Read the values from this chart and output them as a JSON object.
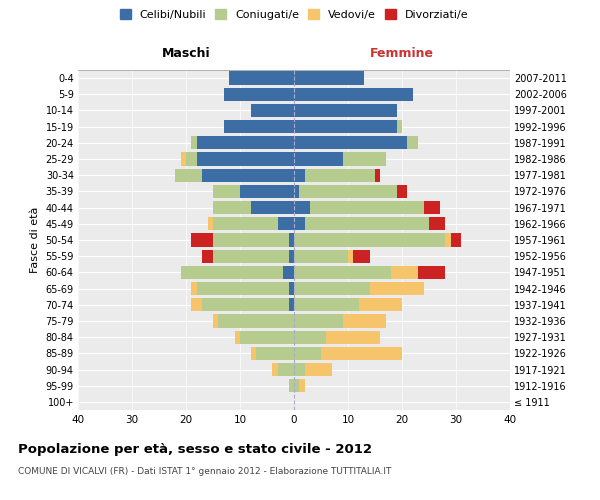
{
  "age_groups": [
    "100+",
    "95-99",
    "90-94",
    "85-89",
    "80-84",
    "75-79",
    "70-74",
    "65-69",
    "60-64",
    "55-59",
    "50-54",
    "45-49",
    "40-44",
    "35-39",
    "30-34",
    "25-29",
    "20-24",
    "15-19",
    "10-14",
    "5-9",
    "0-4"
  ],
  "birth_years": [
    "≤ 1911",
    "1912-1916",
    "1917-1921",
    "1922-1926",
    "1927-1931",
    "1932-1936",
    "1937-1941",
    "1942-1946",
    "1947-1951",
    "1952-1956",
    "1957-1961",
    "1962-1966",
    "1967-1971",
    "1972-1976",
    "1977-1981",
    "1982-1986",
    "1987-1991",
    "1992-1996",
    "1997-2001",
    "2002-2006",
    "2007-2011"
  ],
  "male": {
    "celibi": [
      0,
      0,
      0,
      0,
      0,
      0,
      1,
      1,
      2,
      1,
      1,
      3,
      8,
      10,
      17,
      18,
      18,
      13,
      8,
      13,
      12
    ],
    "coniugati": [
      0,
      1,
      3,
      7,
      10,
      14,
      16,
      17,
      19,
      14,
      14,
      12,
      7,
      5,
      5,
      2,
      1,
      0,
      0,
      0,
      0
    ],
    "vedovi": [
      0,
      0,
      1,
      1,
      1,
      1,
      2,
      1,
      0,
      0,
      0,
      1,
      0,
      0,
      0,
      1,
      0,
      0,
      0,
      0,
      0
    ],
    "divorziati": [
      0,
      0,
      0,
      0,
      0,
      0,
      0,
      0,
      0,
      2,
      4,
      0,
      0,
      0,
      0,
      0,
      0,
      0,
      0,
      0,
      0
    ]
  },
  "female": {
    "nubili": [
      0,
      0,
      0,
      0,
      0,
      0,
      0,
      0,
      0,
      0,
      0,
      2,
      3,
      1,
      2,
      9,
      21,
      19,
      19,
      22,
      13
    ],
    "coniugate": [
      0,
      1,
      2,
      5,
      6,
      9,
      12,
      14,
      18,
      10,
      28,
      23,
      21,
      18,
      13,
      8,
      2,
      1,
      0,
      0,
      0
    ],
    "vedove": [
      0,
      1,
      5,
      15,
      10,
      8,
      8,
      10,
      5,
      1,
      1,
      0,
      0,
      0,
      0,
      0,
      0,
      0,
      0,
      0,
      0
    ],
    "divorziate": [
      0,
      0,
      0,
      0,
      0,
      0,
      0,
      0,
      5,
      3,
      2,
      3,
      3,
      2,
      1,
      0,
      0,
      0,
      0,
      0,
      0
    ]
  },
  "colors": {
    "celibi": "#3c6ea5",
    "coniugati": "#b5cc8e",
    "vedovi": "#f5c46b",
    "divorziati": "#cc2222"
  },
  "title": "Popolazione per età, sesso e stato civile - 2012",
  "subtitle": "COMUNE DI VICALVI (FR) - Dati ISTAT 1° gennaio 2012 - Elaborazione TUTTITALIA.IT",
  "xlabel_left": "Maschi",
  "xlabel_right": "Femmine",
  "ylabel_left": "Fasce di età",
  "xlim": 40,
  "background_color": "#ffffff",
  "legend_labels": [
    "Celibi/Nubili",
    "Coniugati/e",
    "Vedovi/e",
    "Divorziati/e"
  ]
}
